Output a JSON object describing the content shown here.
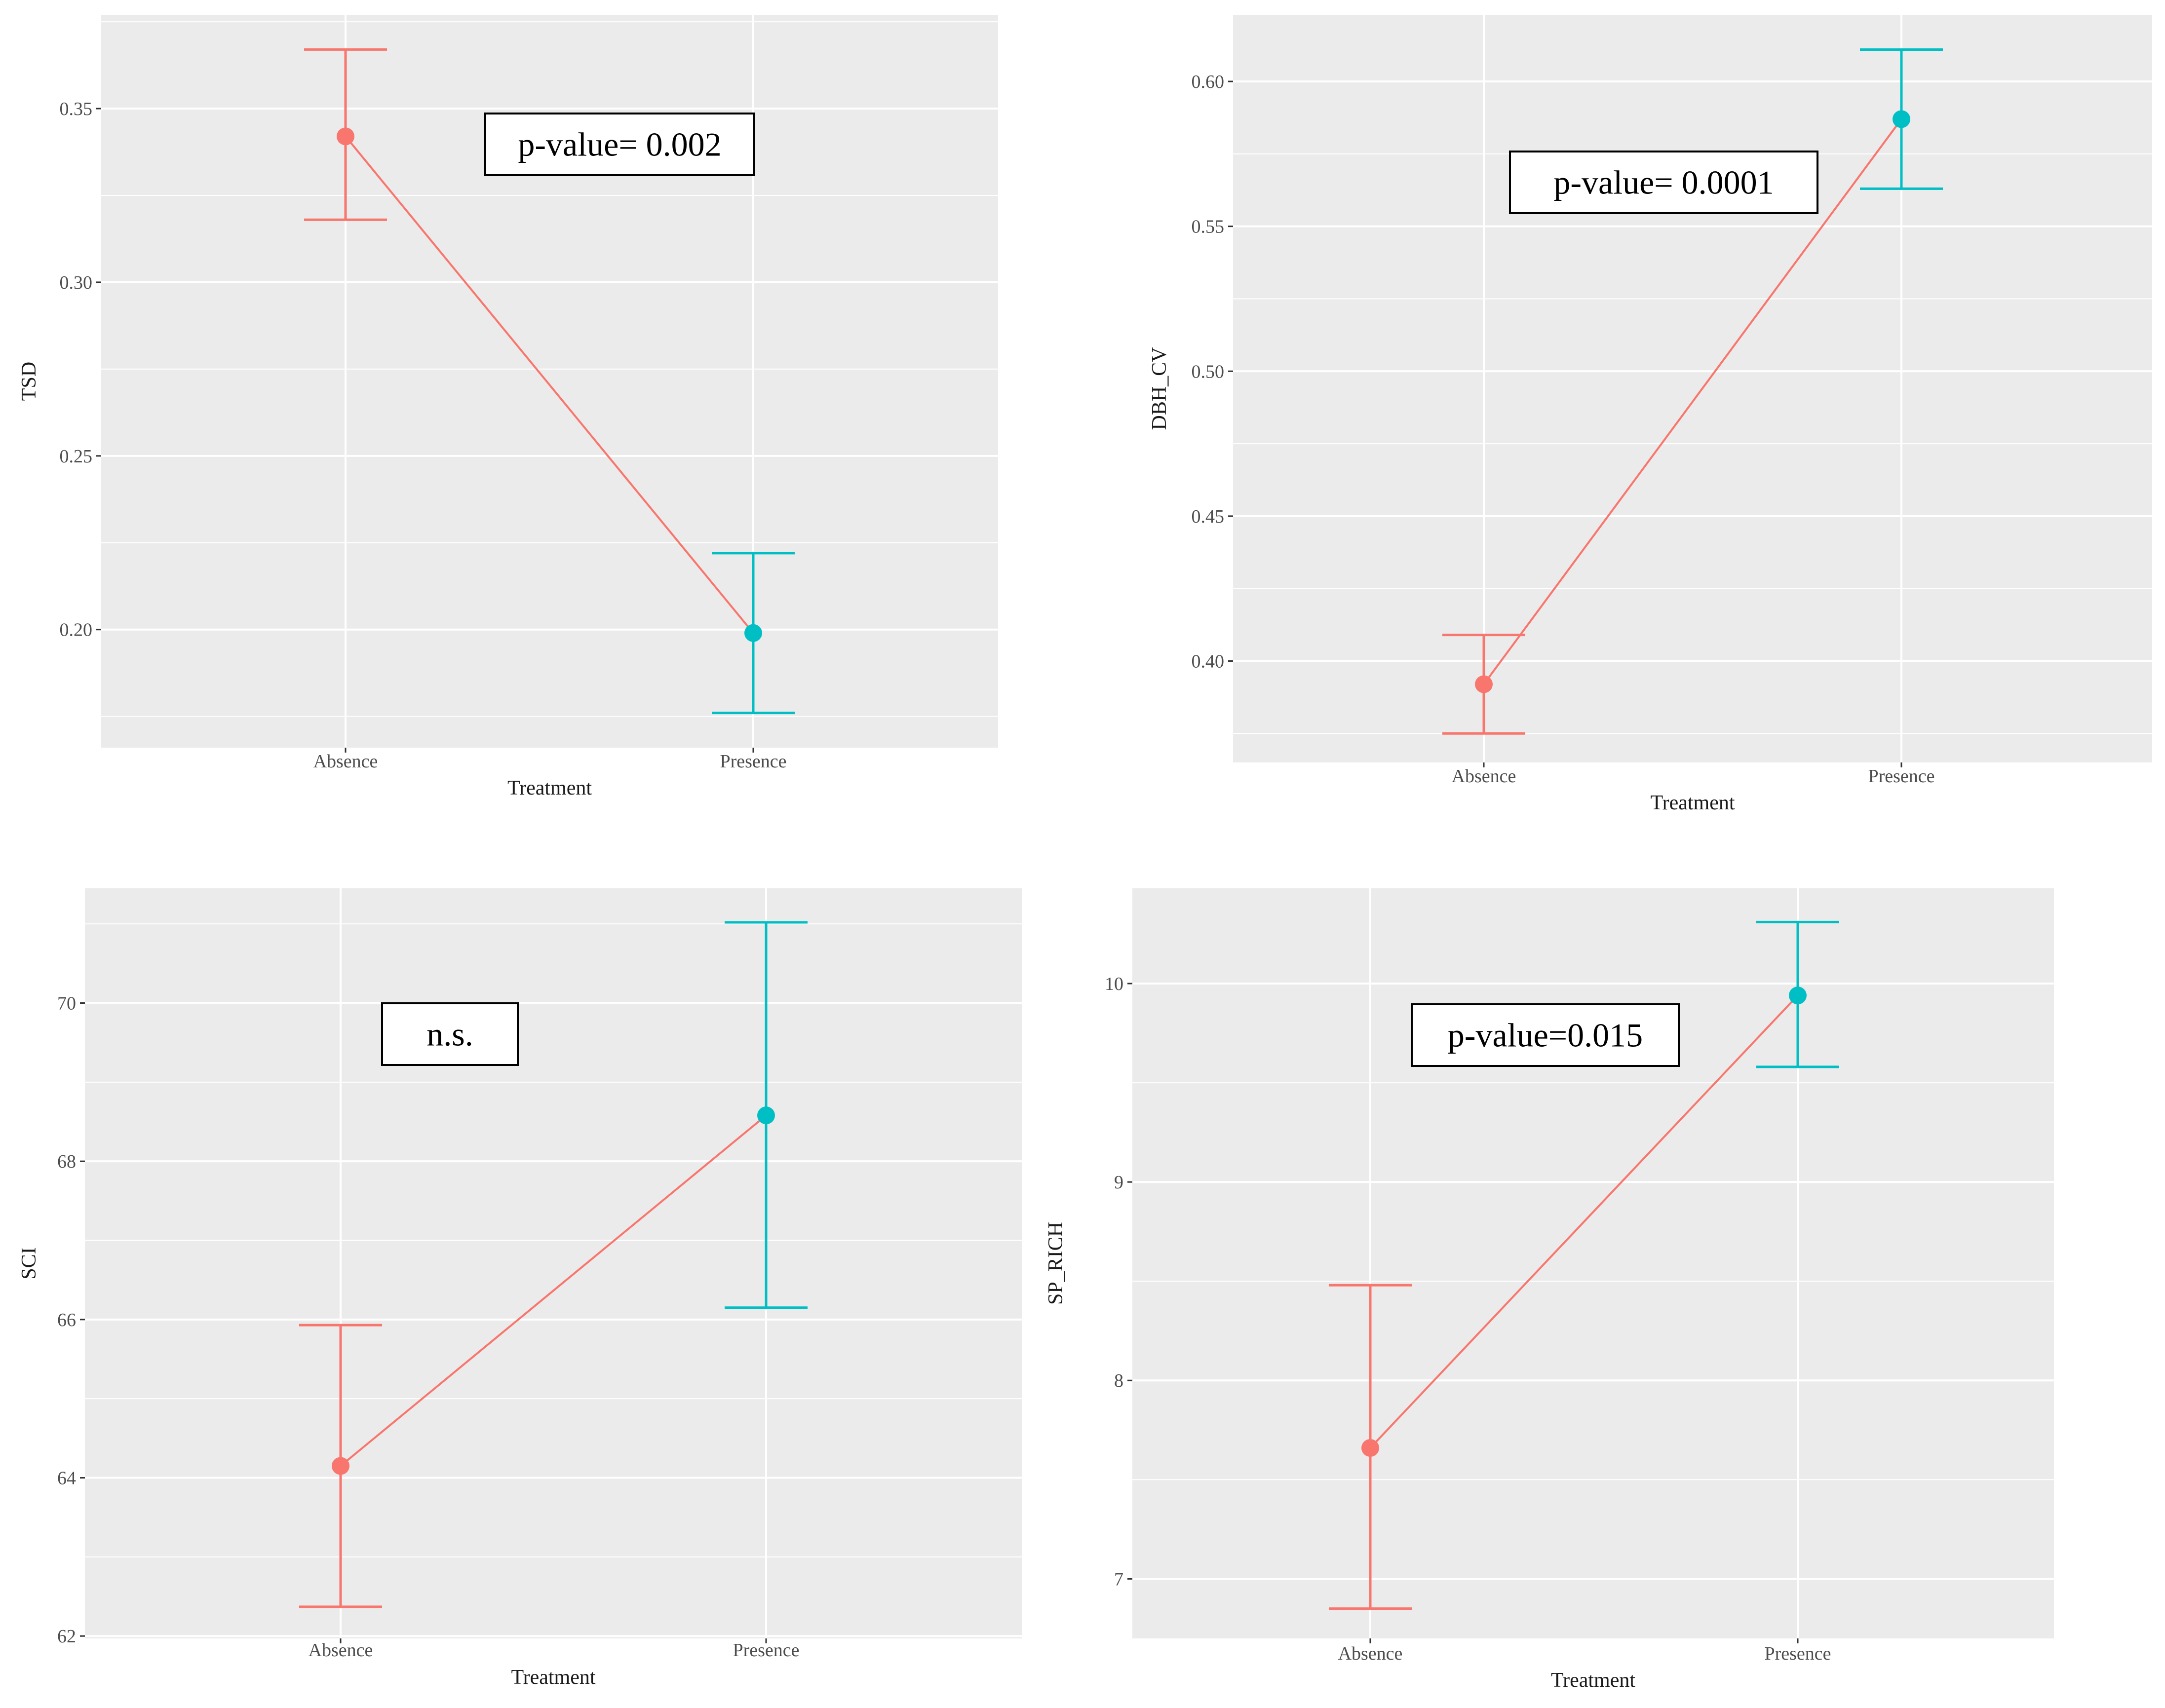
{
  "colors": {
    "panel_background": "#EBEBEB",
    "grid_line": "#FFFFFF",
    "absence": "#F8766D",
    "presence": "#00BFC4",
    "annotation_border": "#000000",
    "annotation_fill": "#FFFFFF"
  },
  "chart_data": [
    {
      "type": "line",
      "id": "tsd",
      "xlabel": "Treatment",
      "ylabel": "TSD",
      "categories": [
        "Absence",
        "Presence"
      ],
      "values": [
        0.342,
        0.199
      ],
      "errors": {
        "lower": [
          0.318,
          0.176
        ],
        "upper": [
          0.367,
          0.222
        ]
      },
      "ylim": [
        0.166,
        0.377
      ],
      "yticks": [
        0.2,
        0.25,
        0.3,
        0.35
      ],
      "ytick_labels": [
        "0.20",
        "0.25",
        "0.30",
        "0.35"
      ],
      "annotation": "p-value= 0.002"
    },
    {
      "type": "line",
      "id": "dbh_cv",
      "xlabel": "Treatment",
      "ylabel": "DBH_CV",
      "categories": [
        "Absence",
        "Presence"
      ],
      "values": [
        0.392,
        0.587
      ],
      "errors": {
        "lower": [
          0.375,
          0.563
        ],
        "upper": [
          0.409,
          0.611
        ]
      },
      "ylim": [
        0.365,
        0.623
      ],
      "yticks": [
        0.4,
        0.45,
        0.5,
        0.55,
        0.6
      ],
      "ytick_labels": [
        "0.40",
        "0.45",
        "0.50",
        "0.55",
        "0.60"
      ],
      "annotation": "p-value= 0.0001"
    },
    {
      "type": "line",
      "id": "sci",
      "xlabel": "Treatment",
      "ylabel": "SCI",
      "categories": [
        "Absence",
        "Presence"
      ],
      "values": [
        64.15,
        68.58
      ],
      "errors": {
        "lower": [
          62.37,
          66.15
        ],
        "upper": [
          65.93,
          71.02
        ]
      },
      "ylim": [
        61.97,
        71.45
      ],
      "yticks": [
        62,
        64,
        66,
        68,
        70
      ],
      "ytick_labels": [
        "62",
        "64",
        "66",
        "68",
        "70"
      ],
      "annotation": "n.s."
    },
    {
      "type": "line",
      "id": "sp_rich",
      "xlabel": "Treatment",
      "ylabel": "SP_RICH",
      "categories": [
        "Absence",
        "Presence"
      ],
      "values": [
        7.66,
        9.94
      ],
      "errors": {
        "lower": [
          6.85,
          9.58
        ],
        "upper": [
          8.48,
          10.31
        ]
      },
      "ylim": [
        6.7,
        10.48
      ],
      "yticks": [
        7,
        8,
        9,
        10
      ],
      "ytick_labels": [
        "7",
        "8",
        "9",
        "10"
      ],
      "annotation": "p-value=0.015"
    }
  ]
}
